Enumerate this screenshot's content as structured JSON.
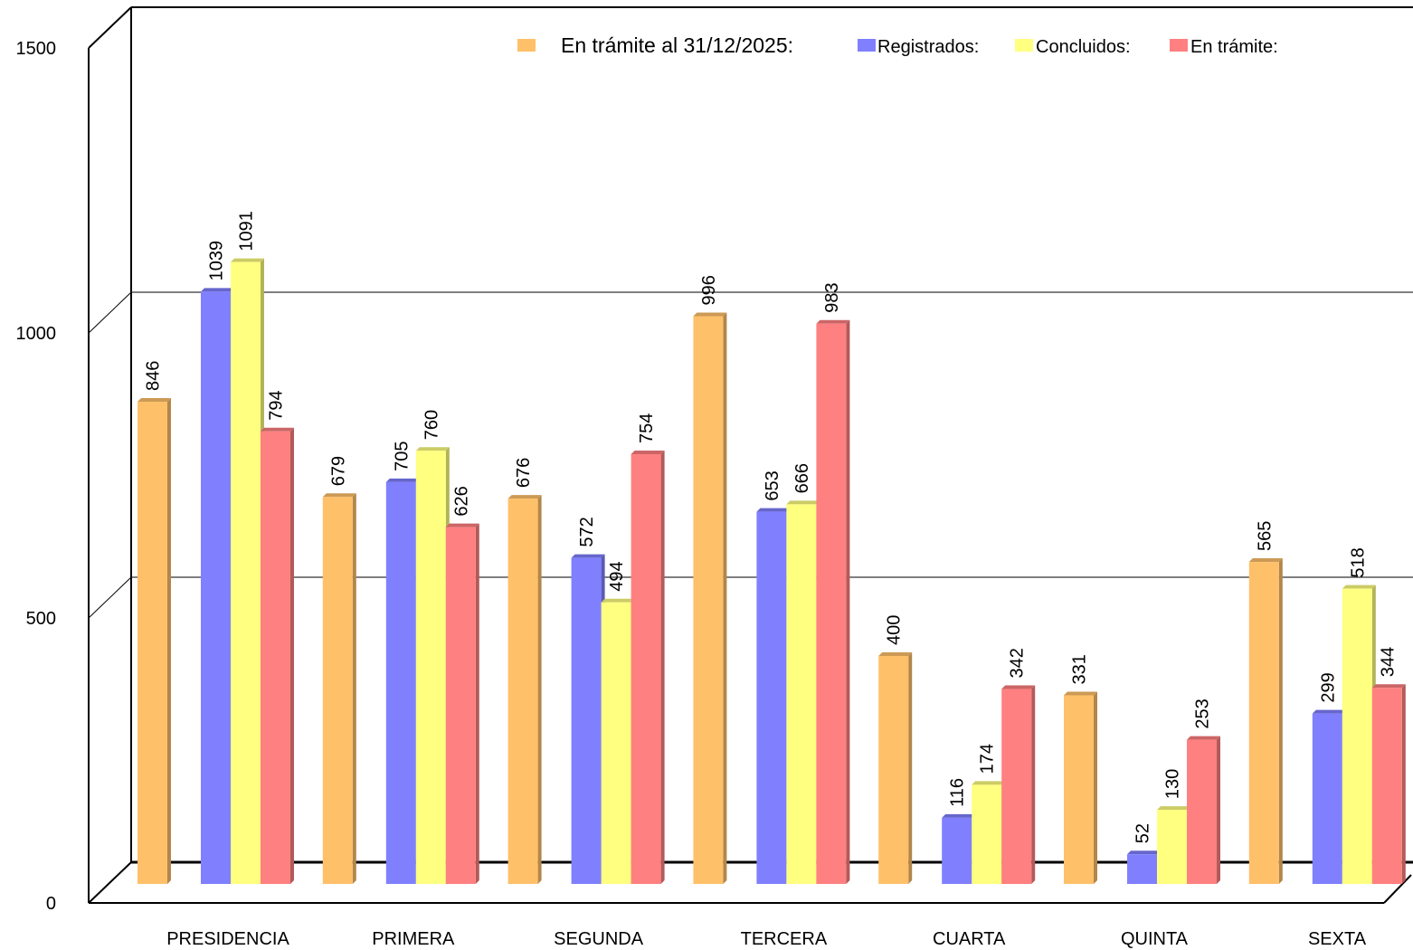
{
  "chart_data": {
    "type": "bar",
    "title": "",
    "xlabel": "",
    "ylabel": "",
    "ylim": [
      0,
      1500
    ],
    "yticks": [
      0,
      500,
      1000,
      1500
    ],
    "grid": true,
    "legend_position": "top-right",
    "categories": [
      "PRESIDENCIA",
      "PRIMERA",
      "SEGUNDA",
      "TERCERA",
      "CUARTA",
      "QUINTA",
      "SEXTA"
    ],
    "series": [
      {
        "name": "En trámite al 31/12/2025:",
        "color": "#FFC06A",
        "values": [
          846,
          679,
          676,
          996,
          400,
          331,
          565
        ]
      },
      {
        "name": "Registrados:",
        "color": "#8080FF",
        "values": [
          1039,
          705,
          572,
          653,
          116,
          52,
          299
        ]
      },
      {
        "name": "Concluidos:",
        "color": "#FFFF80",
        "values": [
          1091,
          760,
          494,
          666,
          174,
          130,
          518
        ]
      },
      {
        "name": "En trámite:",
        "color": "#FF8080",
        "values": [
          794,
          626,
          754,
          983,
          342,
          253,
          344
        ]
      }
    ]
  }
}
